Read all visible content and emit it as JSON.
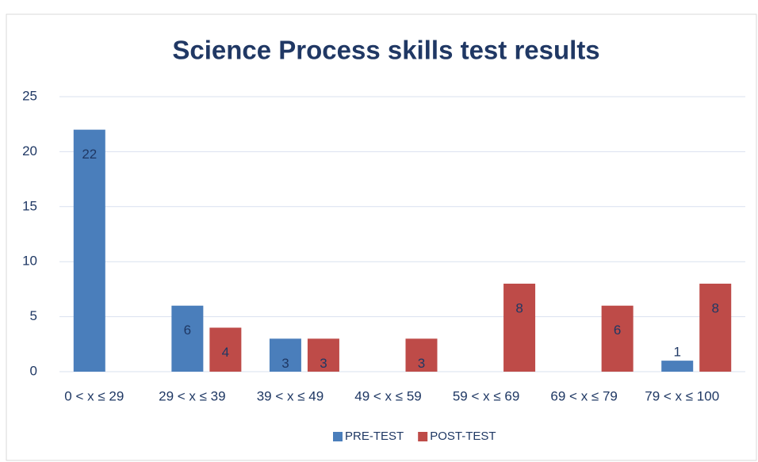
{
  "chart_data": {
    "type": "bar",
    "title": "Science Process skills test results",
    "categories": [
      "0 < x ≤ 29",
      "29 < x ≤ 39",
      "39 < x ≤ 49",
      "49 < x ≤ 59",
      "59 < x ≤ 69",
      "69 < x ≤ 79",
      "79 < x ≤ 100"
    ],
    "series": [
      {
        "name": "PRE-TEST",
        "color": "#4a7ebb",
        "values": [
          22,
          6,
          3,
          null,
          null,
          null,
          1
        ]
      },
      {
        "name": "POST-TEST",
        "color": "#be4b48",
        "values": [
          null,
          4,
          3,
          3,
          8,
          6,
          8
        ]
      }
    ],
    "ylim": [
      0,
      25
    ],
    "yticks": [
      0,
      5,
      10,
      15,
      20,
      25
    ],
    "grid": true,
    "legend": "bottom"
  }
}
